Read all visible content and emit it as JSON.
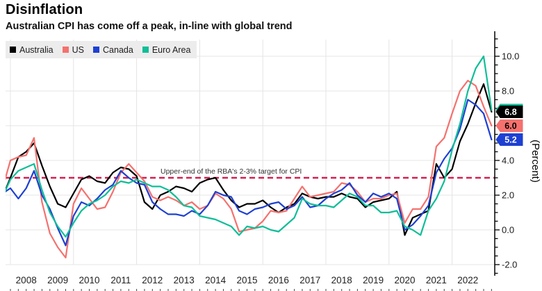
{
  "header": {
    "title": "Disinflation",
    "subtitle": "Australian CPI has come off a peak, in-line with global trend"
  },
  "legend": {
    "items": [
      {
        "label": "Australia",
        "color": "#000000"
      },
      {
        "label": "US",
        "color": "#F4716E"
      },
      {
        "label": "Canada",
        "color": "#1E40D2"
      },
      {
        "label": "Euro Area",
        "color": "#0FBE97"
      }
    ]
  },
  "annotation": {
    "text": "Upper-end of the RBA's 2-3% target for CPI",
    "color": "#333333"
  },
  "colors": {
    "grid": "#e4e4e4",
    "axis": "#000000",
    "tick_label": "#1a1a1a",
    "target_line": "#D81E4E",
    "legend_bg": "#ececec"
  },
  "chart_data": {
    "type": "line",
    "title": "Disinflation",
    "subtitle": "Australian CPI has come off a peak, in-line with global trend",
    "ylabel": "(Percent)",
    "x_unit": "year, quarterly CPI YoY plotted at quarter end (final point latest monthly)",
    "ylim": [
      -2.7,
      11.3
    ],
    "xlim": [
      2007.6,
      2023.35
    ],
    "grid": true,
    "legend_position": "top-left",
    "yticks": [
      -2,
      0,
      2,
      4,
      6,
      8,
      10
    ],
    "ytick_labels": [
      "-2.0",
      "0.0",
      "2.0",
      "4.0",
      "6.0",
      "8.0",
      "10.0"
    ],
    "xticks_years": [
      2008,
      2009,
      2010,
      2011,
      2012,
      2013,
      2014,
      2015,
      2016,
      2017,
      2018,
      2019,
      2020,
      2021,
      2022
    ],
    "grid_years": [
      2008,
      2010,
      2012,
      2014,
      2016,
      2018,
      2020,
      2022
    ],
    "target_line": {
      "value": 3.0,
      "style": "dashed",
      "color": "#D81E4E",
      "label": "Upper-end of the RBA's 2-3% target for CPI"
    },
    "x": [
      2007.75,
      2008,
      2008.25,
      2008.5,
      2008.75,
      2009,
      2009.25,
      2009.5,
      2009.75,
      2010,
      2010.25,
      2010.5,
      2010.75,
      2011,
      2011.25,
      2011.5,
      2011.75,
      2012,
      2012.25,
      2012.5,
      2012.75,
      2013,
      2013.25,
      2013.5,
      2013.75,
      2014,
      2014.25,
      2014.5,
      2014.75,
      2015,
      2015.25,
      2015.5,
      2015.75,
      2016,
      2016.25,
      2016.5,
      2016.75,
      2017,
      2017.25,
      2017.5,
      2017.75,
      2018,
      2018.25,
      2018.5,
      2018.75,
      2019,
      2019.25,
      2019.5,
      2019.75,
      2020,
      2020.25,
      2020.5,
      2020.75,
      2021,
      2021.25,
      2021.5,
      2021.75,
      2022,
      2022.25,
      2022.5,
      2022.75,
      2023,
      2023.25
    ],
    "series": [
      {
        "name": "Australia",
        "color": "#000000",
        "end_label": "6.8",
        "end_label_text_color": "#ffffff",
        "values": [
          1.9,
          3.0,
          4.2,
          4.5,
          5.0,
          3.7,
          2.5,
          1.5,
          1.3,
          2.1,
          2.9,
          3.1,
          2.8,
          2.7,
          3.3,
          3.6,
          3.5,
          3.1,
          1.6,
          1.2,
          2.0,
          2.2,
          2.5,
          2.4,
          2.2,
          2.7,
          2.9,
          3.0,
          2.3,
          1.7,
          1.3,
          1.5,
          1.5,
          1.7,
          1.3,
          1.0,
          1.3,
          1.5,
          2.1,
          1.9,
          1.8,
          1.9,
          1.9,
          2.1,
          1.9,
          1.8,
          1.3,
          1.6,
          1.7,
          1.8,
          2.2,
          -0.3,
          0.7,
          0.9,
          1.1,
          3.8,
          3.0,
          3.5,
          5.1,
          6.1,
          7.3,
          8.4,
          6.8
        ]
      },
      {
        "name": "US",
        "color": "#F4716E",
        "end_label": "6.0",
        "end_label_text_color": "#000000",
        "values": [
          2.4,
          4.0,
          4.2,
          4.3,
          5.3,
          1.6,
          -0.2,
          -1.0,
          -1.6,
          1.5,
          2.4,
          1.8,
          1.2,
          1.3,
          2.2,
          3.3,
          3.8,
          3.3,
          2.8,
          1.9,
          1.7,
          1.9,
          1.7,
          1.4,
          1.6,
          1.2,
          1.4,
          2.1,
          1.8,
          1.2,
          -0.1,
          0.0,
          0.1,
          0.5,
          1.1,
          1.0,
          1.1,
          1.8,
          2.5,
          1.9,
          2.0,
          2.1,
          2.2,
          2.7,
          2.6,
          2.2,
          1.6,
          1.8,
          1.8,
          2.0,
          2.1,
          0.4,
          1.2,
          1.2,
          1.9,
          4.8,
          5.3,
          6.7,
          8.0,
          8.6,
          8.3,
          7.1,
          6.0
        ]
      },
      {
        "name": "Canada",
        "color": "#1E40D2",
        "end_label": "5.2",
        "end_label_text_color": "#ffffff",
        "values": [
          2.1,
          2.4,
          1.8,
          2.4,
          3.4,
          2.0,
          1.2,
          0.1,
          -0.9,
          0.8,
          1.6,
          1.4,
          1.8,
          2.3,
          2.6,
          3.4,
          3.0,
          2.7,
          2.6,
          1.6,
          1.2,
          0.9,
          0.9,
          0.8,
          1.1,
          0.9,
          1.4,
          2.2,
          2.0,
          1.9,
          1.1,
          0.9,
          1.2,
          1.3,
          1.5,
          1.6,
          1.2,
          1.4,
          1.9,
          1.3,
          1.4,
          1.8,
          2.1,
          2.3,
          2.7,
          2.0,
          1.6,
          2.1,
          1.9,
          2.1,
          1.8,
          0.0,
          0.3,
          0.8,
          1.4,
          3.3,
          4.1,
          4.7,
          5.8,
          7.5,
          7.2,
          6.7,
          5.2
        ]
      },
      {
        "name": "Euro Area",
        "color": "#0FBE97",
        "end_label": "",
        "end_label_text_color": "#000000",
        "values": [
          1.9,
          2.9,
          3.4,
          3.6,
          3.8,
          2.3,
          1.0,
          0.2,
          -0.4,
          0.4,
          1.1,
          1.5,
          1.7,
          2.0,
          2.5,
          2.8,
          2.7,
          2.9,
          2.7,
          2.5,
          2.5,
          2.3,
          1.9,
          1.4,
          1.3,
          0.8,
          0.7,
          0.6,
          0.4,
          0.2,
          -0.3,
          0.2,
          0.1,
          0.2,
          0.0,
          -0.1,
          0.3,
          0.7,
          1.8,
          1.5,
          1.4,
          1.4,
          1.3,
          1.7,
          2.1,
          1.9,
          1.4,
          1.4,
          1.0,
          1.0,
          1.1,
          0.2,
          0.0,
          -0.3,
          1.1,
          1.8,
          2.8,
          4.6,
          6.1,
          8.0,
          9.3,
          10.0,
          6.9
        ]
      }
    ]
  }
}
